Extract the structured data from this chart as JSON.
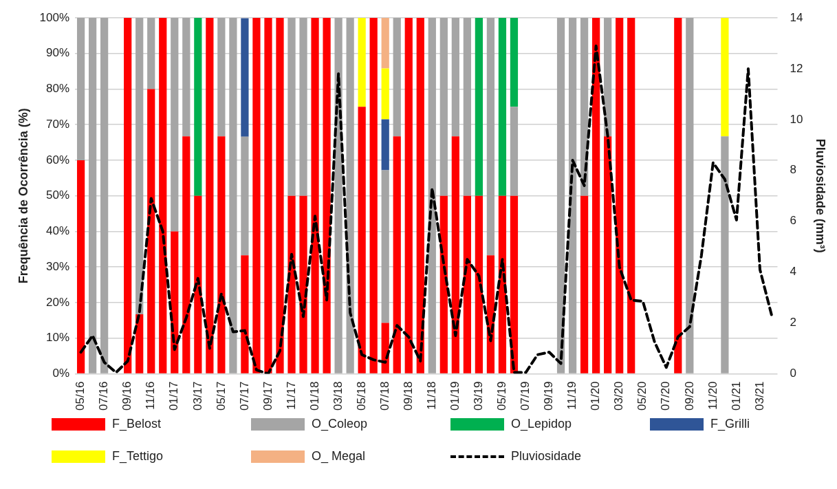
{
  "chart_data": {
    "type": "bar",
    "stacked": true,
    "categories": [
      "05/16",
      null,
      "07/16",
      null,
      "09/16",
      null,
      "11/16",
      null,
      "01/17",
      null,
      "03/17",
      null,
      "05/17",
      null,
      "07/17",
      null,
      "09/17",
      null,
      "11/17",
      null,
      "01/18",
      null,
      "03/18",
      null,
      "05/18",
      null,
      "07/18",
      null,
      "09/18",
      null,
      "11/18",
      null,
      "01/19",
      null,
      "03/19",
      null,
      "05/19",
      null,
      "07/19",
      null,
      "09/19",
      null,
      "11/19",
      null,
      "01/20",
      null,
      "03/20",
      null,
      "05/20",
      null,
      "07/20",
      null,
      "09/20",
      null,
      "11/20",
      null,
      "01/21",
      null,
      "03/21",
      null
    ],
    "series": [
      {
        "name": "F_Belost",
        "color": "#ff0000",
        "values": [
          60,
          null,
          null,
          null,
          100,
          16.7,
          80,
          100,
          40,
          66.7,
          50,
          100,
          66.7,
          null,
          33.3,
          100,
          100,
          100,
          50,
          50,
          100,
          100,
          null,
          null,
          75,
          100,
          14.3,
          66.7,
          100,
          100,
          null,
          50,
          66.7,
          50,
          50,
          33.3,
          50,
          50,
          null,
          null,
          null,
          null,
          null,
          50,
          100,
          66.7,
          100,
          100,
          null,
          null,
          null,
          100,
          null,
          null,
          null,
          null,
          null,
          null,
          null,
          null
        ]
      },
      {
        "name": "O_Coleop",
        "color": "#a5a5a5",
        "values": [
          40,
          100,
          100,
          null,
          null,
          83.3,
          20,
          null,
          60,
          33.3,
          null,
          null,
          33.3,
          100,
          33.3,
          null,
          null,
          null,
          50,
          50,
          null,
          null,
          100,
          100,
          null,
          null,
          42.9,
          33.3,
          null,
          null,
          100,
          50,
          33.3,
          50,
          null,
          66.7,
          null,
          25,
          null,
          null,
          null,
          100,
          100,
          50,
          null,
          33.3,
          null,
          null,
          null,
          null,
          null,
          null,
          100,
          null,
          null,
          66.7,
          null,
          null,
          null,
          null
        ]
      },
      {
        "name": "O_Lepidop",
        "color": "#00b050",
        "values": [
          null,
          null,
          null,
          null,
          null,
          null,
          null,
          null,
          null,
          null,
          50,
          null,
          null,
          null,
          null,
          null,
          null,
          null,
          null,
          null,
          null,
          null,
          null,
          null,
          null,
          null,
          null,
          null,
          null,
          null,
          null,
          null,
          null,
          null,
          50,
          null,
          50,
          25,
          null,
          null,
          null,
          null,
          null,
          null,
          null,
          null,
          null,
          null,
          null,
          null,
          null,
          null,
          null,
          null,
          null,
          null,
          null,
          null,
          null,
          null
        ]
      },
      {
        "name": "F_Grilli",
        "color": "#2f5597",
        "values": [
          null,
          null,
          null,
          null,
          null,
          null,
          null,
          null,
          null,
          null,
          null,
          null,
          null,
          null,
          33.3,
          null,
          null,
          null,
          null,
          null,
          null,
          null,
          null,
          null,
          null,
          null,
          14.3,
          null,
          null,
          null,
          null,
          null,
          null,
          null,
          null,
          null,
          null,
          null,
          null,
          null,
          null,
          null,
          null,
          null,
          null,
          null,
          null,
          null,
          null,
          null,
          null,
          null,
          null,
          null,
          null,
          null,
          null,
          null,
          null,
          null
        ]
      },
      {
        "name": "F_Tettigo",
        "color": "#ffff00",
        "values": [
          null,
          null,
          null,
          null,
          null,
          null,
          null,
          null,
          null,
          null,
          null,
          null,
          null,
          null,
          null,
          null,
          null,
          null,
          null,
          null,
          null,
          null,
          null,
          null,
          25,
          null,
          14.3,
          null,
          null,
          null,
          null,
          null,
          null,
          null,
          null,
          null,
          null,
          null,
          null,
          null,
          null,
          null,
          null,
          null,
          null,
          null,
          null,
          null,
          null,
          null,
          null,
          null,
          null,
          null,
          null,
          33.3,
          null,
          null,
          null,
          null
        ]
      },
      {
        "name": "O_ Megal",
        "color": "#f4b183",
        "values": [
          null,
          null,
          null,
          null,
          null,
          null,
          null,
          null,
          null,
          null,
          null,
          null,
          null,
          null,
          null,
          null,
          null,
          null,
          null,
          null,
          null,
          null,
          null,
          null,
          null,
          null,
          14.3,
          null,
          null,
          null,
          null,
          null,
          null,
          null,
          null,
          null,
          null,
          null,
          null,
          null,
          null,
          null,
          null,
          null,
          null,
          null,
          null,
          null,
          null,
          null,
          null,
          null,
          null,
          null,
          null,
          null,
          null,
          null,
          null,
          null
        ]
      },
      {
        "name": "Pluviosidade",
        "type": "line",
        "axis": "y2",
        "color": "#000000",
        "line_style": "dashed",
        "marker": "none",
        "values": [
          0.85,
          1.5,
          0.45,
          0.05,
          0.5,
          2.4,
          6.9,
          5.6,
          0.95,
          2.2,
          3.75,
          1.0,
          3.15,
          1.65,
          1.7,
          0.15,
          0,
          0.9,
          4.7,
          2.25,
          6.2,
          2.9,
          11.8,
          2.4,
          0.75,
          0.55,
          0.45,
          1.9,
          1.45,
          0.5,
          7.3,
          4.3,
          1.5,
          4.5,
          3.85,
          1.3,
          4.5,
          0.05,
          0.05,
          0.75,
          0.85,
          0.4,
          8.4,
          7.4,
          12.9,
          9.35,
          4.2,
          2.9,
          2.85,
          1.25,
          0.25,
          1.45,
          1.85,
          4.65,
          8.3,
          7.65,
          6.05,
          12.0,
          4.1,
          2.3
        ]
      }
    ],
    "ylabel": "Frequência de Ocorrência (%)",
    "y2label": "Pluviosidade (mm³)",
    "ylim": [
      0,
      100
    ],
    "yticks": [
      {
        "value": 0,
        "label": "0%"
      },
      {
        "value": 10,
        "label": "10%"
      },
      {
        "value": 20,
        "label": "20%"
      },
      {
        "value": 30,
        "label": "30%"
      },
      {
        "value": 40,
        "label": "40%"
      },
      {
        "value": 50,
        "label": "50%"
      },
      {
        "value": 60,
        "label": "60%"
      },
      {
        "value": 70,
        "label": "70%"
      },
      {
        "value": 80,
        "label": "80%"
      },
      {
        "value": 90,
        "label": "90%"
      },
      {
        "value": 100,
        "label": "100%"
      }
    ],
    "y2lim": [
      0,
      14
    ],
    "y2ticks": [
      0,
      2,
      4,
      6,
      8,
      10,
      12,
      14
    ],
    "grid": "y",
    "legend": "bottom"
  }
}
